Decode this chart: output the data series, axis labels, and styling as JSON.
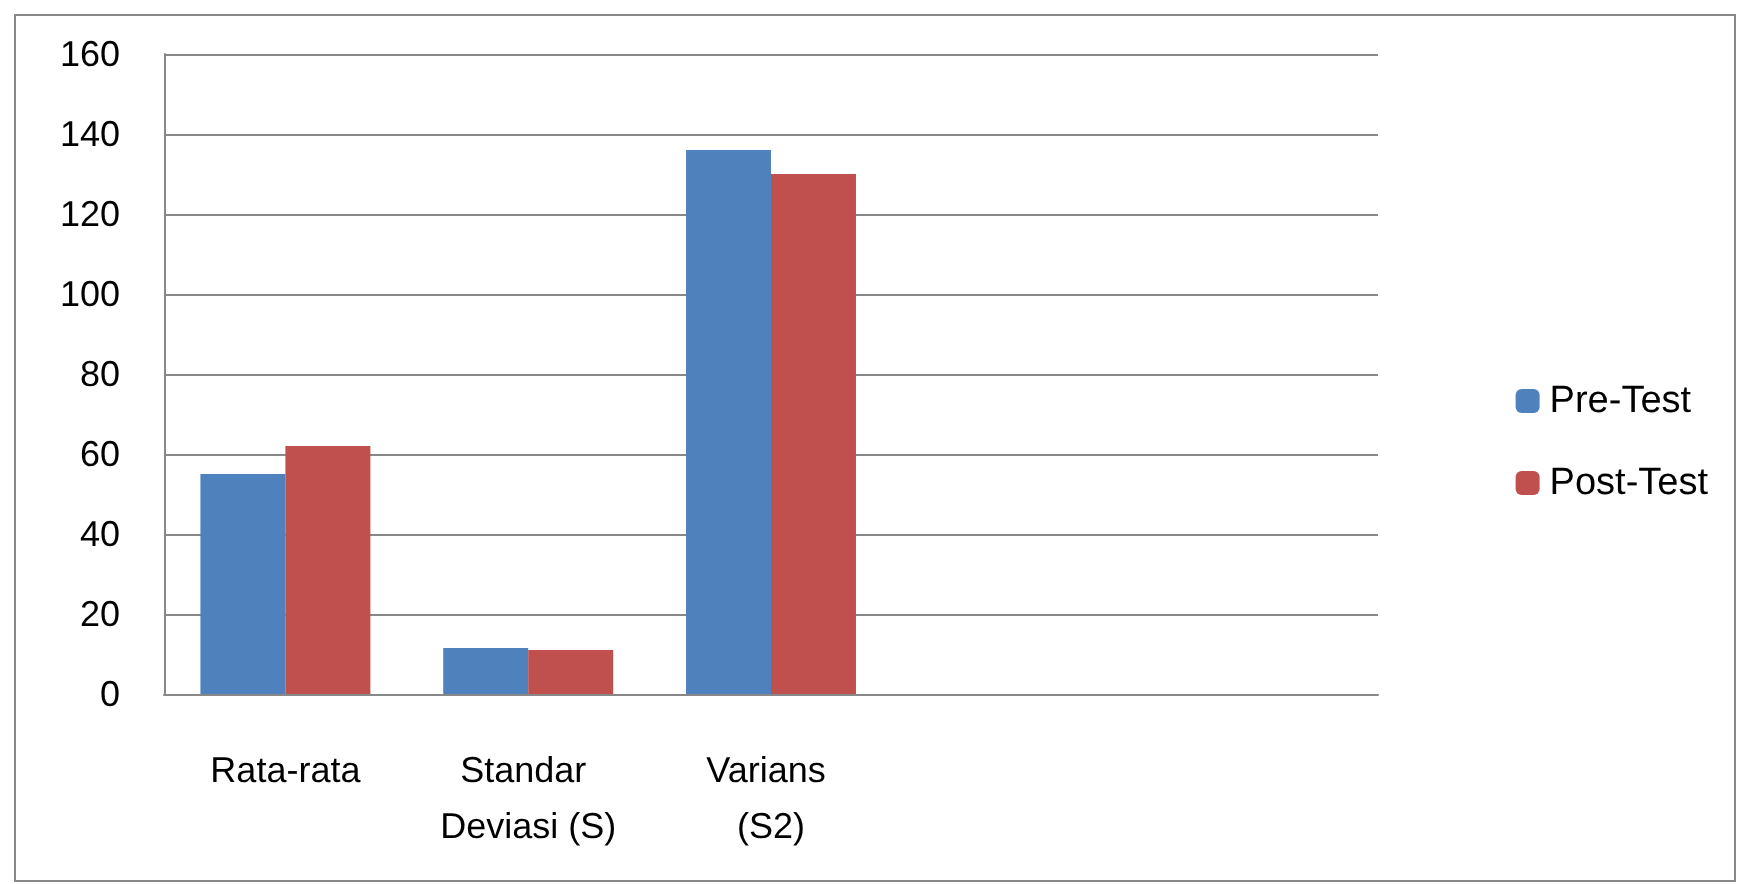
{
  "chart_data": {
    "type": "bar",
    "categories": [
      "Rata-rata",
      "Standar Deviasi (S)",
      "Varians (S2)",
      null,
      null
    ],
    "series": [
      {
        "name": "Pre-Test",
        "color": "#4f81bd",
        "values": [
          55,
          11.5,
          136,
          null,
          null
        ]
      },
      {
        "name": "Post-Test",
        "color": "#c0504d",
        "values": [
          62,
          11,
          130,
          null,
          null
        ]
      }
    ],
    "ylim": [
      0,
      160
    ],
    "yticks": [
      0,
      20,
      40,
      60,
      80,
      100,
      120,
      140,
      160
    ],
    "grid": "y",
    "legend": "right"
  }
}
